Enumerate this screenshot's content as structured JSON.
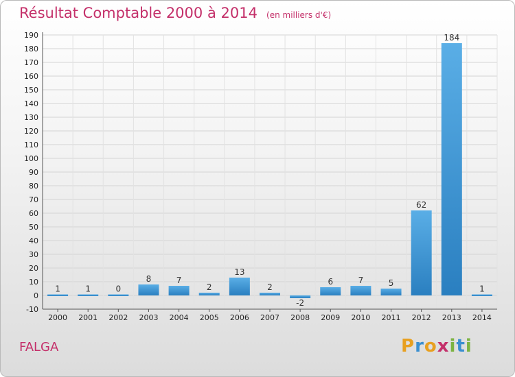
{
  "header": {
    "title": "Résultat Comptable 2000 à 2014",
    "subtitle": "(en milliers d'€)"
  },
  "commune": "FALGA",
  "brand": {
    "logo_letters": [
      "P",
      "r",
      "o",
      "x",
      "i",
      "t",
      "i"
    ],
    "logo_colors": [
      "#e8a020",
      "#3a8fd0",
      "#e8a020",
      "#c4306a",
      "#7cb342",
      "#3a8fd0",
      "#7cb342"
    ]
  },
  "colors": {
    "accent": "#c4306a",
    "bar_top": "#5aaee6",
    "bar_bottom": "#2a7fc0"
  },
  "chart_data": {
    "type": "bar",
    "title": "Résultat Comptable 2000 à 2014",
    "categories": [
      "2000",
      "2001",
      "2002",
      "2003",
      "2004",
      "2005",
      "2006",
      "2007",
      "2008",
      "2009",
      "2010",
      "2011",
      "2012",
      "2013",
      "2014"
    ],
    "values": [
      1,
      1,
      0,
      8,
      7,
      2,
      13,
      2,
      -2,
      6,
      7,
      5,
      62,
      184,
      1
    ],
    "ylim": [
      -10,
      190
    ],
    "ytick_step": 10,
    "grid": true,
    "legend": "none"
  }
}
